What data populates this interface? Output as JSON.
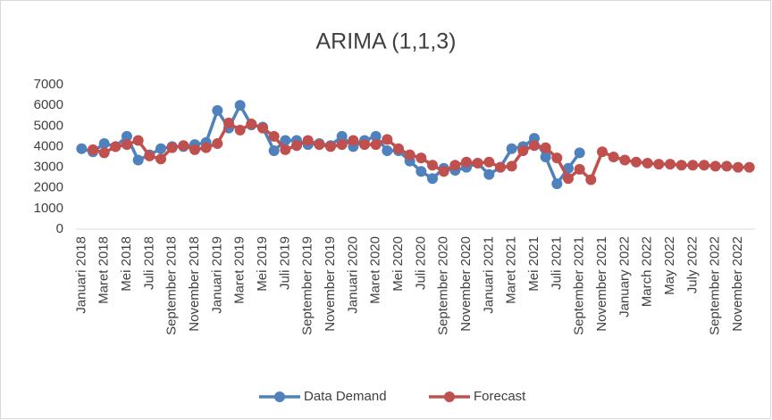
{
  "chart_data": {
    "type": "line",
    "title": "ARIMA  (1,1,3)",
    "categories": [
      "Januari 2018",
      null,
      "Maret 2018",
      null,
      "Mei 2018",
      null,
      "Juli 2018",
      null,
      "September 2018",
      null,
      "November 2018",
      null,
      "Januari 2019",
      null,
      "Maret 2019",
      null,
      "Mei 2019",
      null,
      "Juli 2019",
      null,
      "September 2019",
      null,
      "November 2019",
      null,
      "Januari 2020",
      null,
      "Maret 2020",
      null,
      "Mei 2020",
      null,
      "Juli 2020",
      null,
      "September 2020",
      null,
      "November 2020",
      null,
      "Januari 2021",
      null,
      "Maret 2021",
      null,
      "Mei 2021",
      null,
      "Juli 2021",
      null,
      "September 2021",
      null,
      "November 2021",
      null,
      "January 2022",
      null,
      "March 2022",
      null,
      "May 2022",
      null,
      "July 2022",
      null,
      "September 2022",
      null,
      "November 2022",
      null
    ],
    "series": [
      {
        "name": "Data Demand",
        "color": "#4f81bd",
        "values": [
          3900,
          3750,
          4150,
          4000,
          4500,
          3350,
          3600,
          3900,
          4000,
          4000,
          4100,
          4200,
          5750,
          4900,
          6000,
          5050,
          4950,
          3800,
          4300,
          4300,
          4100,
          4150,
          4050,
          4500,
          4000,
          4300,
          4500,
          3800,
          3800,
          3300,
          2800,
          2450,
          2950,
          2850,
          3000,
          3200,
          2650,
          3000,
          3900,
          4000,
          4400,
          3500,
          2200,
          2950,
          3700,
          null,
          null,
          null,
          null,
          null,
          null,
          null,
          null,
          null,
          null,
          null,
          null,
          null,
          null,
          null
        ]
      },
      {
        "name": "Forecast",
        "color": "#c0504d",
        "values": [
          null,
          3850,
          3700,
          4000,
          4100,
          4300,
          3550,
          3400,
          3950,
          4050,
          3850,
          3950,
          4150,
          5150,
          4800,
          5100,
          4900,
          4500,
          3850,
          4050,
          4300,
          4100,
          4000,
          4100,
          4300,
          4100,
          4100,
          4350,
          3900,
          3600,
          3450,
          3100,
          2800,
          3100,
          3250,
          3200,
          3250,
          3000,
          3050,
          3800,
          4050,
          3950,
          3450,
          2450,
          2900,
          2400,
          3750,
          3500,
          3350,
          3250,
          3200,
          3150,
          3150,
          3100,
          3100,
          3100,
          3050,
          3050,
          3000,
          3000
        ]
      }
    ],
    "ylim": [
      0,
      7000
    ],
    "yticks": [
      0,
      1000,
      2000,
      3000,
      4000,
      5000,
      6000,
      7000
    ],
    "grid": false
  }
}
